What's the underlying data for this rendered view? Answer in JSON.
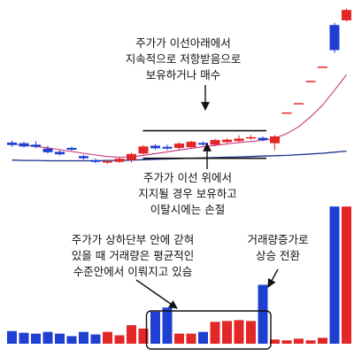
{
  "chart_data": {
    "type": "candlestick-volume",
    "title": "",
    "xlabel": "",
    "ylabel": "",
    "grid": false,
    "colors": {
      "up": "#e32626",
      "down": "#1f3fd0",
      "ma_short": "#c8327f",
      "ma_long": "#1a2f8a"
    },
    "candles": [
      {
        "o": 62.2,
        "c": 61.5,
        "h": 62.8,
        "l": 61.0
      },
      {
        "o": 62.0,
        "c": 61.1,
        "h": 62.4,
        "l": 60.8
      },
      {
        "o": 61.6,
        "c": 61.0,
        "h": 62.6,
        "l": 60.6
      },
      {
        "o": 60.5,
        "c": 59.5,
        "h": 61.3,
        "l": 59.1
      },
      {
        "o": 59.6,
        "c": 58.9,
        "h": 60.0,
        "l": 58.6
      },
      {
        "o": 60.7,
        "c": 60.2,
        "h": 61.1,
        "l": 59.9
      },
      {
        "o": 58.4,
        "c": 57.8,
        "h": 58.8,
        "l": 57.4
      },
      {
        "o": 57.3,
        "c": 56.8,
        "h": 57.7,
        "l": 56.4
      },
      {
        "o": 56.6,
        "c": 57.0,
        "h": 57.4,
        "l": 56.2
      },
      {
        "o": 56.8,
        "c": 57.7,
        "h": 58.1,
        "l": 56.5
      },
      {
        "o": 57.3,
        "c": 59.0,
        "h": 59.4,
        "l": 56.6
      },
      {
        "o": 59.1,
        "c": 61.1,
        "h": 61.5,
        "l": 58.8
      },
      {
        "o": 61.3,
        "c": 60.6,
        "h": 61.8,
        "l": 60.2
      },
      {
        "o": 61.0,
        "c": 60.5,
        "h": 61.6,
        "l": 60.1
      },
      {
        "o": 60.7,
        "c": 61.9,
        "h": 62.3,
        "l": 60.1
      },
      {
        "o": 60.9,
        "c": 62.4,
        "h": 62.7,
        "l": 60.7
      },
      {
        "o": 62.1,
        "c": 61.6,
        "h": 62.5,
        "l": 61.3
      },
      {
        "o": 61.6,
        "c": 62.9,
        "h": 63.2,
        "l": 61.2
      },
      {
        "o": 62.3,
        "c": 63.0,
        "h": 63.4,
        "l": 62.0
      },
      {
        "o": 62.6,
        "c": 63.3,
        "h": 64.2,
        "l": 62.3
      },
      {
        "o": 63.3,
        "c": 63.7,
        "h": 64.3,
        "l": 63.0
      },
      {
        "o": 63.5,
        "c": 62.9,
        "h": 63.9,
        "l": 62.6
      },
      {
        "o": 62.0,
        "c": 63.9,
        "h": 64.3,
        "l": 60.1
      },
      {
        "o": 70.6,
        "c": 70.6,
        "h": 70.6,
        "l": 70.6
      },
      {
        "o": 73.2,
        "c": 73.2,
        "h": 73.2,
        "l": 73.2
      },
      {
        "o": 79.4,
        "c": 79.4,
        "h": 79.4,
        "l": 79.4
      },
      {
        "o": 83.4,
        "c": 83.4,
        "h": 83.4,
        "l": 83.4
      },
      {
        "o": 95.0,
        "c": 88.0,
        "h": 95.6,
        "l": 87.2
      },
      {
        "o": 96.3,
        "c": 99.2,
        "h": 99.6,
        "l": 96.0
      }
    ],
    "ma_short": [
      61.8,
      61.5,
      61.1,
      60.7,
      60.2,
      59.7,
      59.2,
      58.7,
      58.3,
      58.1,
      58.2,
      58.6,
      59.1,
      59.6,
      60.1,
      60.6,
      61.0,
      61.4,
      61.8,
      62.2,
      62.5,
      62.8,
      63.3,
      64.7,
      66.6,
      69.4,
      72.6,
      76.8,
      81.1
    ],
    "ma_long": [
      57.3,
      57.2,
      57.2,
      57.1,
      57.1,
      57.1,
      57.1,
      57.1,
      57.2,
      57.2,
      57.3,
      57.4,
      57.5,
      57.6,
      57.7,
      57.8,
      57.9,
      58.0,
      58.1,
      58.2,
      58.3,
      58.4,
      58.5,
      58.6,
      58.8,
      59.0,
      59.2,
      59.5,
      59.8
    ],
    "volume": [
      15,
      13,
      12,
      14,
      12,
      9,
      14,
      11,
      14,
      10,
      22,
      18,
      38,
      43,
      12,
      12,
      14,
      26,
      27,
      28,
      27,
      70,
      5,
      4,
      6,
      4,
      7,
      163,
      163
    ],
    "support_resistance": {
      "upper": 65.5,
      "lower": 57.8
    },
    "highlight_range": [
      12,
      21
    ]
  },
  "annotations": {
    "resistance": [
      "주가가 이선아래에서",
      "지속적으로 저항받음으로",
      "보유하거나 매수"
    ],
    "support": [
      "주가가 이선 위에서",
      "지지될 경우 보유하고",
      "이탈시에는 손절"
    ],
    "volume_avg": [
      "주가가 상하단부 안에 갇혀",
      "있을 때 거래량은 평균적인",
      "수준안에서 이뤄지고 있슴"
    ],
    "volume_up": [
      "거래량증가로",
      "상승 전환"
    ]
  }
}
